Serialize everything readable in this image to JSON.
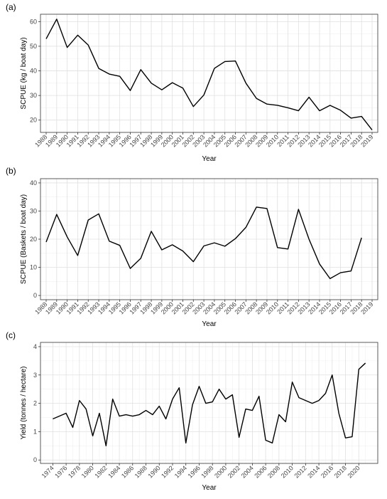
{
  "chart_data": [
    {
      "type": "line",
      "panel_label": "(a)",
      "title": "",
      "xlabel": "Year",
      "ylabel": "SCPUE (kg / boat day)",
      "xlim": [
        1988,
        2019
      ],
      "ylim": [
        15,
        63
      ],
      "yticks": [
        20,
        30,
        40,
        50,
        60
      ],
      "xticks": [
        1988,
        1989,
        1990,
        1991,
        1992,
        1993,
        1994,
        1995,
        1996,
        1997,
        1998,
        1999,
        2000,
        2001,
        2002,
        2003,
        2004,
        2005,
        2006,
        2007,
        2008,
        2009,
        2010,
        2011,
        2012,
        2013,
        2014,
        2015,
        2016,
        2017,
        2018,
        2019
      ],
      "grid": true,
      "x": [
        1988,
        1989,
        1990,
        1991,
        1992,
        1993,
        1994,
        1995,
        1996,
        1997,
        1998,
        1999,
        2000,
        2001,
        2002,
        2003,
        2004,
        2005,
        2006,
        2007,
        2008,
        2009,
        2010,
        2011,
        2012,
        2013,
        2014,
        2015,
        2016,
        2017,
        2018,
        2019
      ],
      "y": [
        53,
        61,
        49.5,
        54.5,
        50.5,
        41,
        38.7,
        37.8,
        32,
        40.5,
        35,
        32.3,
        35.2,
        33,
        25.5,
        30.2,
        41,
        43.8,
        44,
        35,
        28.8,
        26.5,
        26,
        25,
        23.8,
        29.3,
        23.8,
        26,
        24,
        20.8,
        21.5,
        16
      ]
    },
    {
      "type": "line",
      "panel_label": "(b)",
      "title": "",
      "xlabel": "Year",
      "ylabel": "SCPUE (Baskets / boat day)",
      "xlim": [
        1988,
        2019
      ],
      "ylim": [
        -1.5,
        41.5
      ],
      "yticks": [
        0,
        10,
        20,
        30,
        40
      ],
      "xticks": [
        1988,
        1989,
        1990,
        1991,
        1992,
        1993,
        1994,
        1995,
        1996,
        1997,
        1998,
        1999,
        2000,
        2001,
        2002,
        2003,
        2004,
        2005,
        2006,
        2007,
        2008,
        2009,
        2010,
        2011,
        2012,
        2013,
        2014,
        2015,
        2016,
        2017,
        2018,
        2019
      ],
      "grid": true,
      "x": [
        1988,
        1989,
        1990,
        1991,
        1992,
        1993,
        1994,
        1995,
        1996,
        1997,
        1998,
        1999,
        2000,
        2001,
        2002,
        2003,
        2004,
        2005,
        2006,
        2007,
        2008,
        2009,
        2010,
        2011,
        2012,
        2013,
        2014,
        2015,
        2016,
        2017,
        2018
      ],
      "y": [
        19,
        28.8,
        20.8,
        14.2,
        26.8,
        29,
        19.3,
        17.8,
        9.6,
        13.2,
        22.8,
        16.2,
        18,
        15.8,
        12,
        17.6,
        18.7,
        17.5,
        20.2,
        24.2,
        31.4,
        30.9,
        17,
        16.5,
        30.6,
        20,
        11.2,
        6,
        8.1,
        8.7,
        20.5
      ]
    },
    {
      "type": "line",
      "panel_label": "(c)",
      "title": "",
      "xlabel": "Year",
      "ylabel": "Yield (tonnes / hectare)",
      "xlim": [
        1973,
        2022
      ],
      "ylim": [
        -0.12,
        4.15
      ],
      "yticks": [
        0,
        1,
        2,
        3,
        4
      ],
      "xticks": [
        1974,
        1976,
        1978,
        1980,
        1982,
        1984,
        1986,
        1988,
        1990,
        1992,
        1994,
        1996,
        1998,
        2000,
        2002,
        2004,
        2006,
        2008,
        2010,
        2012,
        2014,
        2016,
        2018,
        2020
      ],
      "grid": true,
      "x": [
        1974,
        1975,
        1976,
        1977,
        1978,
        1979,
        1980,
        1981,
        1982,
        1983,
        1984,
        1985,
        1986,
        1987,
        1988,
        1989,
        1990,
        1991,
        1992,
        1993,
        1994,
        1995,
        1996,
        1997,
        1998,
        1999,
        2000,
        2001,
        2002,
        2003,
        2004,
        2005,
        2006,
        2007,
        2008,
        2009,
        2010,
        2011,
        2012,
        2013,
        2014,
        2015,
        2016,
        2017,
        2018,
        2019,
        2020,
        2021
      ],
      "y": [
        1.45,
        1.55,
        1.65,
        1.15,
        2.1,
        1.8,
        0.85,
        1.65,
        0.5,
        2.15,
        1.55,
        1.6,
        1.55,
        1.6,
        1.75,
        1.6,
        1.9,
        1.45,
        2.15,
        2.55,
        0.6,
        1.95,
        2.6,
        2.0,
        2.05,
        2.5,
        2.15,
        2.3,
        0.8,
        1.8,
        1.75,
        2.25,
        0.7,
        0.6,
        1.6,
        1.35,
        2.75,
        2.2,
        2.1,
        2.0,
        2.1,
        2.35,
        3.0,
        1.65,
        0.78,
        0.82,
        3.2,
        3.42
      ]
    }
  ]
}
